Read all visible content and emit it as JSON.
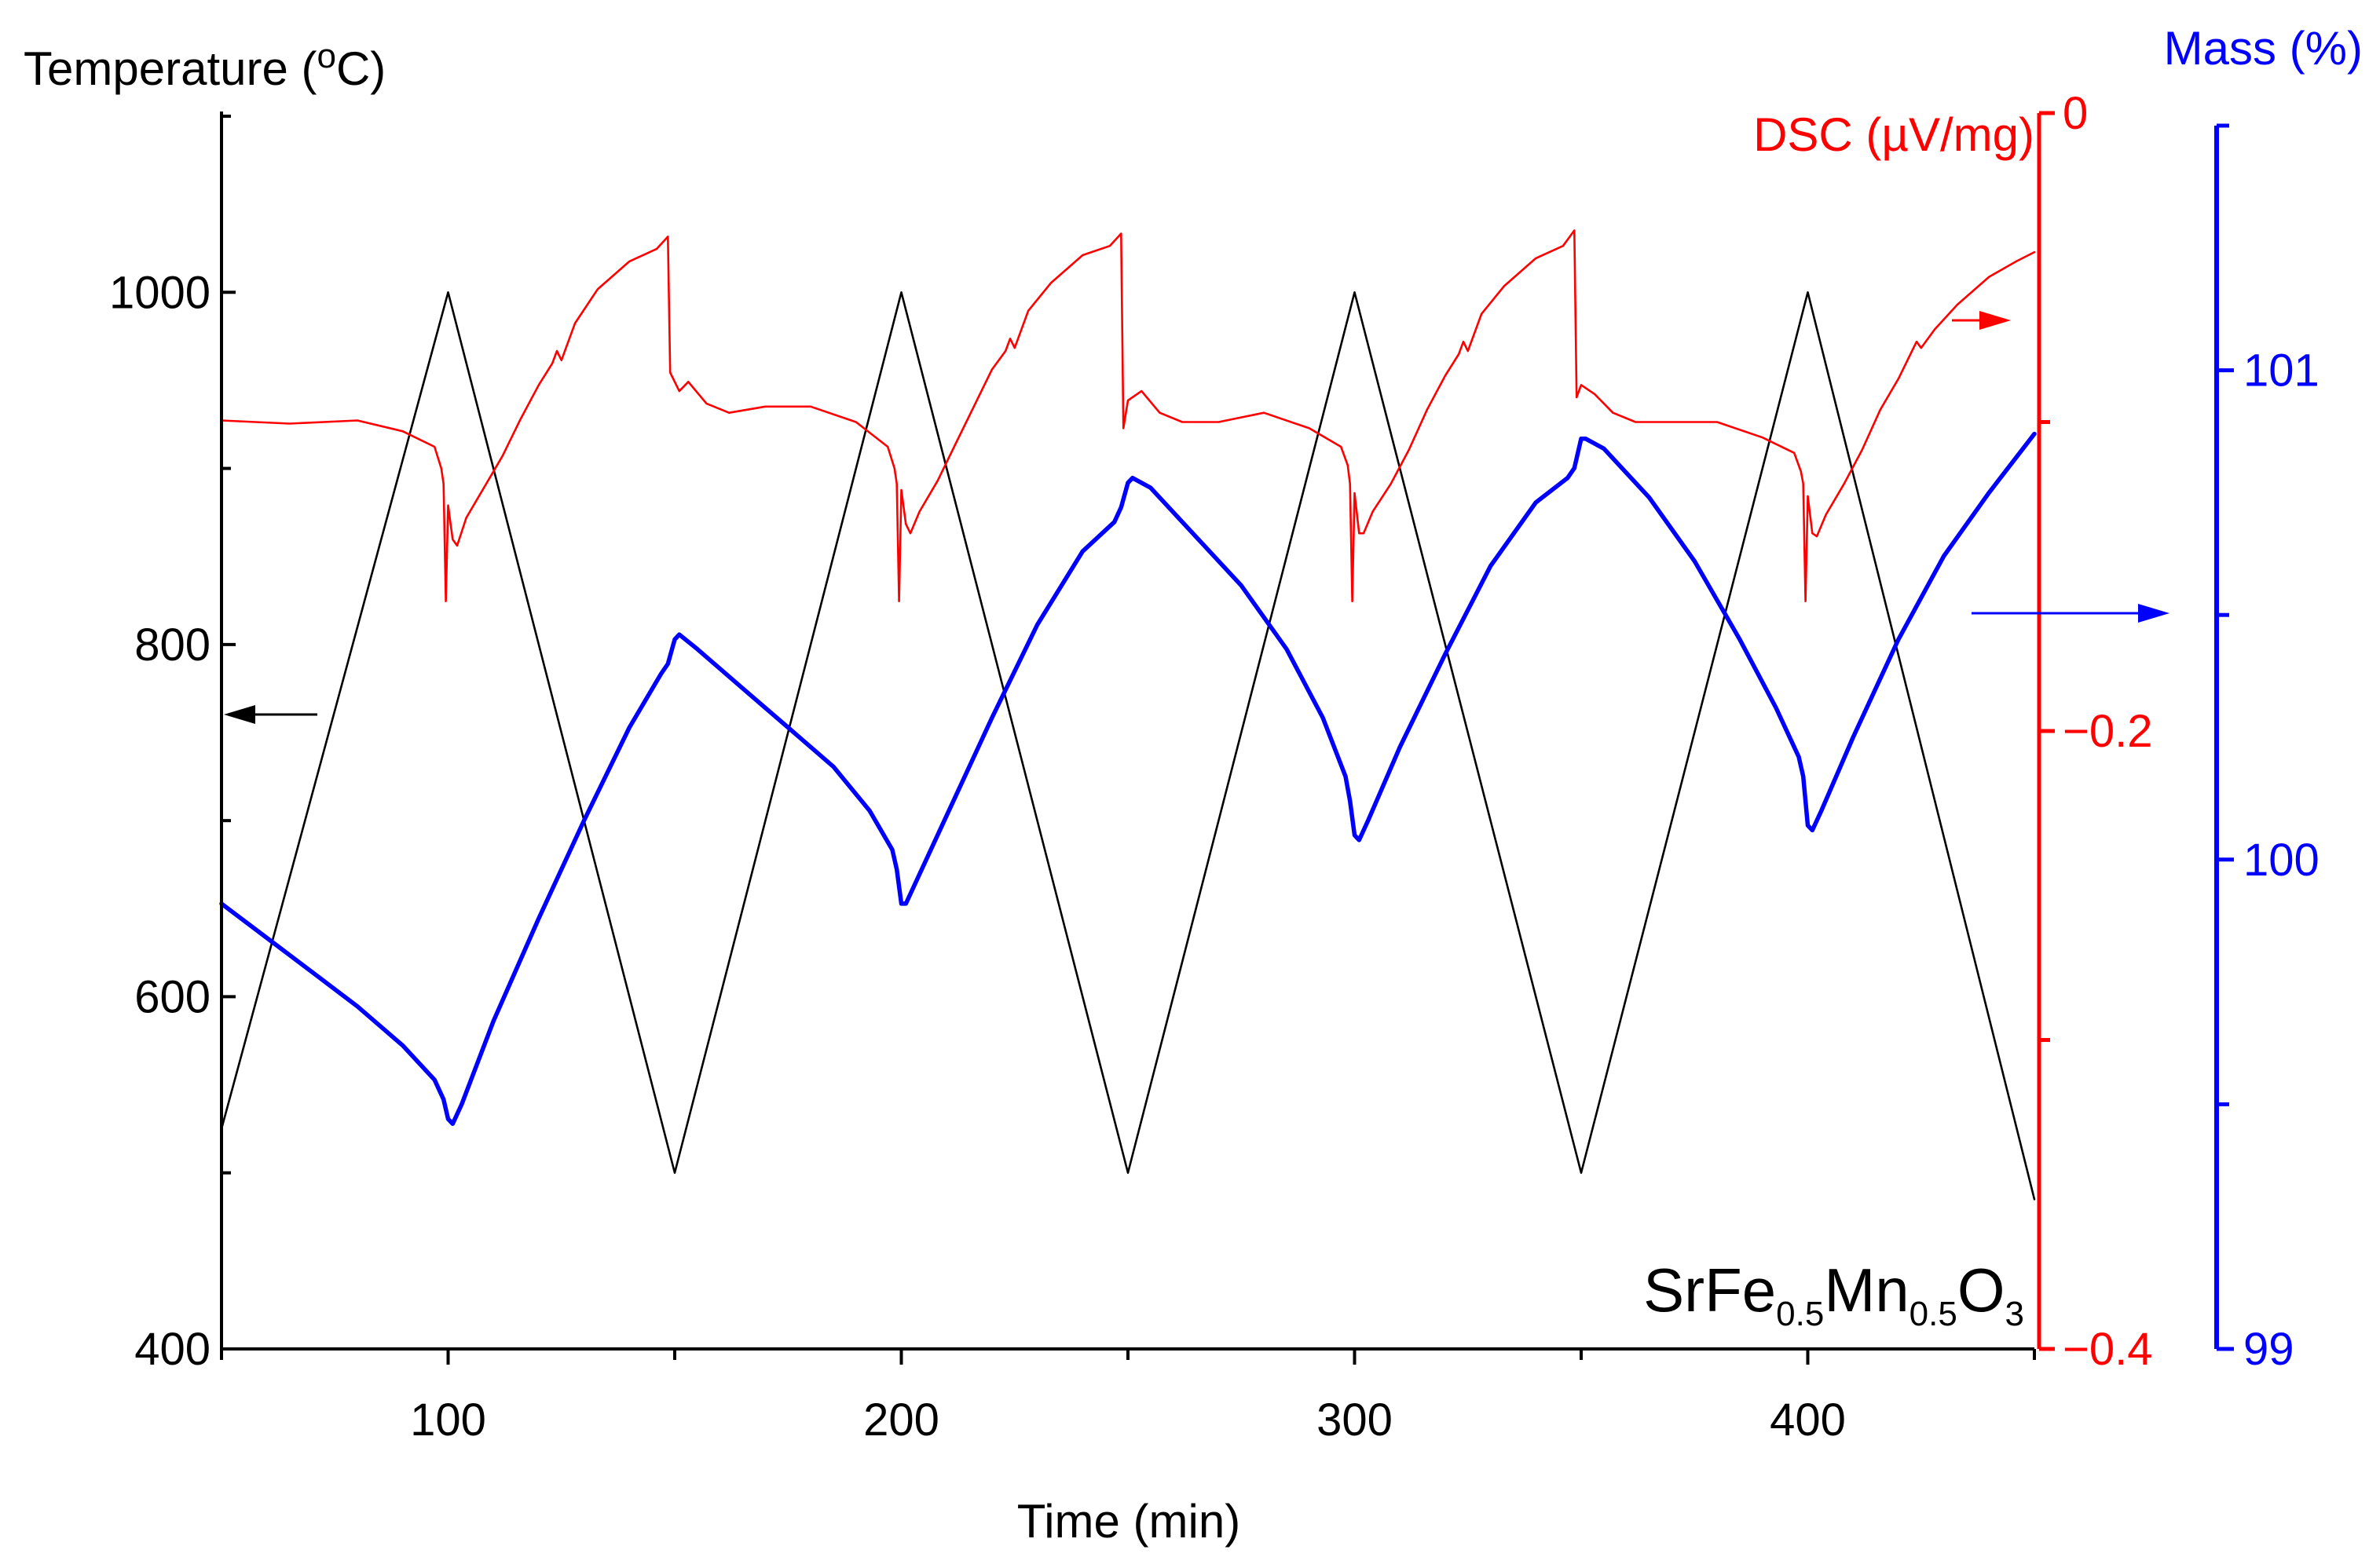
{
  "chart_data": {
    "type": "line",
    "sample_label": {
      "main": [
        "Sr",
        "Fe",
        "Mn",
        "O"
      ],
      "subscripts": [
        "0.5",
        "0.5",
        "3"
      ]
    },
    "x_axis": {
      "title": "Time (min)",
      "range": [
        50,
        450
      ],
      "ticks": [
        100,
        200,
        300,
        400
      ],
      "tick_labels": [
        "100",
        "200",
        "300",
        "400"
      ]
    },
    "axes": {
      "temperature": {
        "title": "Temperature (°C)",
        "title_main": "Temperature (",
        "title_degree": "o",
        "title_unit": "C)",
        "color": "#000000",
        "range": [
          400,
          1100
        ],
        "ticks": [
          400,
          600,
          800,
          1000
        ],
        "tick_labels": [
          "400",
          "600",
          "800",
          "1000"
        ]
      },
      "dsc": {
        "title": "DSC (µV/mg)",
        "color": "#ff0000",
        "range": [
          -0.4,
          0
        ],
        "ticks": [
          -0.4,
          -0.2,
          0
        ],
        "tick_labels": [
          "−0.4",
          "−0.2",
          "0"
        ]
      },
      "mass": {
        "title": "Mass (%)",
        "color": "#0000ff",
        "range": [
          99,
          101.5
        ],
        "ticks": [
          99,
          100,
          101
        ],
        "tick_labels": [
          "99",
          "100",
          "101"
        ]
      }
    },
    "series": [
      {
        "name": "Temperature",
        "axis": "temperature",
        "color": "#000000",
        "points": [
          [
            50,
            525
          ],
          [
            100,
            1000
          ],
          [
            150,
            500
          ],
          [
            200,
            1000
          ],
          [
            250,
            500
          ],
          [
            300,
            1000
          ],
          [
            350,
            500
          ],
          [
            400,
            1000
          ],
          [
            450,
            485
          ]
        ]
      },
      {
        "name": "DSC",
        "axis": "dsc",
        "color": "#ff0000",
        "points": [
          [
            50,
            -0.0995
          ],
          [
            65,
            -0.1005
          ],
          [
            80,
            -0.0995
          ],
          [
            90,
            -0.103
          ],
          [
            97,
            -0.108
          ],
          [
            98.5,
            -0.115
          ],
          [
            99,
            -0.12
          ],
          [
            99.5,
            -0.158
          ],
          [
            100,
            -0.127
          ],
          [
            101,
            -0.138
          ],
          [
            102,
            -0.14
          ],
          [
            104,
            -0.131
          ],
          [
            108,
            -0.121
          ],
          [
            112,
            -0.111
          ],
          [
            116,
            -0.099
          ],
          [
            120,
            -0.088
          ],
          [
            123,
            -0.081
          ],
          [
            124,
            -0.077
          ],
          [
            125,
            -0.08
          ],
          [
            128,
            -0.068
          ],
          [
            133,
            -0.057
          ],
          [
            140,
            -0.048
          ],
          [
            146,
            -0.044
          ],
          [
            148.5,
            -0.04
          ],
          [
            149,
            -0.084
          ],
          [
            151,
            -0.09
          ],
          [
            153,
            -0.087
          ],
          [
            157,
            -0.094
          ],
          [
            162,
            -0.097
          ],
          [
            170,
            -0.095
          ],
          [
            180,
            -0.095
          ],
          [
            190,
            -0.1
          ],
          [
            197,
            -0.108
          ],
          [
            198.5,
            -0.115
          ],
          [
            199,
            -0.12
          ],
          [
            199.5,
            -0.158
          ],
          [
            200,
            -0.122
          ],
          [
            201,
            -0.133
          ],
          [
            202,
            -0.136
          ],
          [
            204,
            -0.129
          ],
          [
            208,
            -0.119
          ],
          [
            212,
            -0.107
          ],
          [
            216,
            -0.095
          ],
          [
            220,
            -0.083
          ],
          [
            223,
            -0.077
          ],
          [
            224,
            -0.073
          ],
          [
            225,
            -0.076
          ],
          [
            228,
            -0.064
          ],
          [
            233,
            -0.055
          ],
          [
            240,
            -0.046
          ],
          [
            246,
            -0.043
          ],
          [
            248.5,
            -0.039
          ],
          [
            249,
            -0.102
          ],
          [
            250,
            -0.093
          ],
          [
            253,
            -0.09
          ],
          [
            257,
            -0.097
          ],
          [
            262,
            -0.1
          ],
          [
            270,
            -0.1
          ],
          [
            280,
            -0.097
          ],
          [
            290,
            -0.102
          ],
          [
            297,
            -0.108
          ],
          [
            298.5,
            -0.114
          ],
          [
            299,
            -0.12
          ],
          [
            299.5,
            -0.158
          ],
          [
            300,
            -0.123
          ],
          [
            301,
            -0.136
          ],
          [
            302,
            -0.136
          ],
          [
            304,
            -0.129
          ],
          [
            308,
            -0.12
          ],
          [
            312,
            -0.109
          ],
          [
            316,
            -0.096
          ],
          [
            320,
            -0.085
          ],
          [
            323,
            -0.078
          ],
          [
            324,
            -0.074
          ],
          [
            325,
            -0.077
          ],
          [
            328,
            -0.065
          ],
          [
            333,
            -0.056
          ],
          [
            340,
            -0.047
          ],
          [
            346,
            -0.043
          ],
          [
            348.5,
            -0.038
          ],
          [
            349,
            -0.092
          ],
          [
            350,
            -0.088
          ],
          [
            353,
            -0.091
          ],
          [
            357,
            -0.097
          ],
          [
            362,
            -0.1
          ],
          [
            370,
            -0.1
          ],
          [
            380,
            -0.1
          ],
          [
            390,
            -0.105
          ],
          [
            397,
            -0.11
          ],
          [
            398.5,
            -0.116
          ],
          [
            399,
            -0.12
          ],
          [
            399.5,
            -0.158
          ],
          [
            400,
            -0.124
          ],
          [
            401,
            -0.136
          ],
          [
            402,
            -0.137
          ],
          [
            404,
            -0.13
          ],
          [
            408,
            -0.12
          ],
          [
            412,
            -0.109
          ],
          [
            416,
            -0.096
          ],
          [
            420,
            -0.086
          ],
          [
            423,
            -0.077
          ],
          [
            424,
            -0.074
          ],
          [
            425,
            -0.076
          ],
          [
            428,
            -0.07
          ],
          [
            433,
            -0.062
          ],
          [
            440,
            -0.053
          ],
          [
            446,
            -0.048
          ],
          [
            450,
            -0.045
          ]
        ]
      },
      {
        "name": "Mass",
        "axis": "mass",
        "color": "#0000ff",
        "points": [
          [
            50,
            99.91
          ],
          [
            60,
            99.84
          ],
          [
            70,
            99.77
          ],
          [
            80,
            99.7
          ],
          [
            90,
            99.62
          ],
          [
            97,
            99.55
          ],
          [
            99,
            99.51
          ],
          [
            100,
            99.47
          ],
          [
            101,
            99.46
          ],
          [
            103,
            99.5
          ],
          [
            110,
            99.67
          ],
          [
            120,
            99.88
          ],
          [
            130,
            100.08
          ],
          [
            140,
            100.27
          ],
          [
            147,
            100.38
          ],
          [
            148.5,
            100.4
          ],
          [
            150,
            100.45
          ],
          [
            151,
            100.46
          ],
          [
            155,
            100.43
          ],
          [
            165,
            100.35
          ],
          [
            175,
            100.27
          ],
          [
            185,
            100.19
          ],
          [
            193,
            100.1
          ],
          [
            198,
            100.02
          ],
          [
            199,
            99.98
          ],
          [
            200,
            99.91
          ],
          [
            201,
            99.91
          ],
          [
            203,
            99.95
          ],
          [
            210,
            100.09
          ],
          [
            220,
            100.29
          ],
          [
            230,
            100.48
          ],
          [
            240,
            100.63
          ],
          [
            247,
            100.69
          ],
          [
            248.5,
            100.72
          ],
          [
            250,
            100.77
          ],
          [
            251,
            100.78
          ],
          [
            255,
            100.76
          ],
          [
            265,
            100.66
          ],
          [
            275,
            100.56
          ],
          [
            285,
            100.43
          ],
          [
            293,
            100.29
          ],
          [
            298,
            100.17
          ],
          [
            299,
            100.12
          ],
          [
            300,
            100.05
          ],
          [
            301,
            100.04
          ],
          [
            303,
            100.08
          ],
          [
            310,
            100.23
          ],
          [
            320,
            100.42
          ],
          [
            330,
            100.6
          ],
          [
            340,
            100.73
          ],
          [
            347,
            100.78
          ],
          [
            348.5,
            100.8
          ],
          [
            350,
            100.86
          ],
          [
            351,
            100.86
          ],
          [
            355,
            100.84
          ],
          [
            365,
            100.74
          ],
          [
            375,
            100.61
          ],
          [
            385,
            100.45
          ],
          [
            393,
            100.31
          ],
          [
            398,
            100.21
          ],
          [
            399,
            100.17
          ],
          [
            400,
            100.07
          ],
          [
            401,
            100.06
          ],
          [
            403,
            100.1
          ],
          [
            410,
            100.25
          ],
          [
            420,
            100.45
          ],
          [
            430,
            100.62
          ],
          [
            440,
            100.75
          ],
          [
            450,
            100.87
          ]
        ]
      }
    ],
    "annotations": [
      {
        "type": "arrow",
        "direction": "left",
        "series": "Temperature",
        "color": "#000000"
      },
      {
        "type": "arrow",
        "direction": "right",
        "series": "DSC",
        "color": "#ff0000"
      },
      {
        "type": "arrow",
        "direction": "right",
        "series": "Mass",
        "color": "#0000ff"
      }
    ]
  }
}
